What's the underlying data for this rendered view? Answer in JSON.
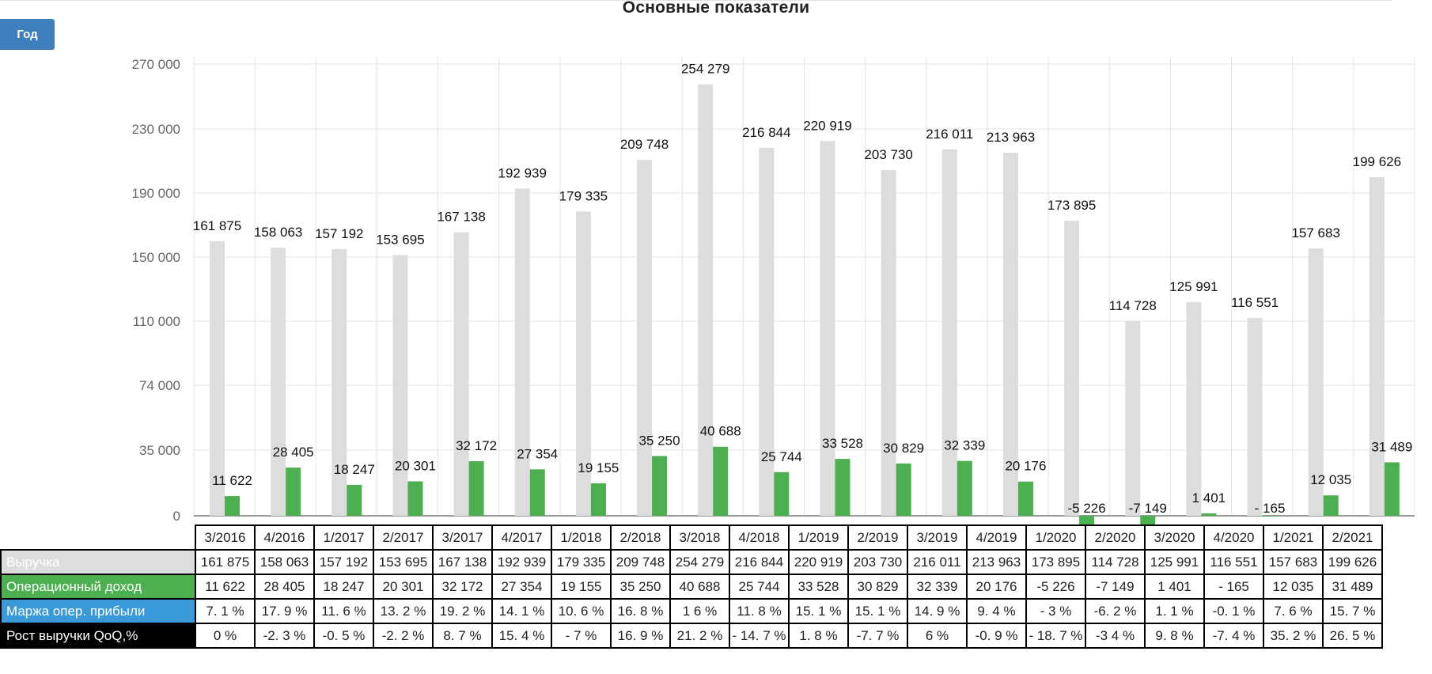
{
  "title": "Основные показатели",
  "period_button": "Год",
  "chart_data": {
    "type": "bar",
    "title": "Основные показатели",
    "categories": [
      "3/2016",
      "4/2016",
      "1/2017",
      "2/2017",
      "3/2017",
      "4/2017",
      "1/2018",
      "2/2018",
      "3/2018",
      "4/2018",
      "1/2019",
      "2/2019",
      "3/2019",
      "4/2019",
      "1/2020",
      "2/2020",
      "3/2020",
      "4/2020",
      "1/2021",
      "2/2021"
    ],
    "series": [
      {
        "name": "Выручка",
        "color": "#dddddd",
        "values": [
          161875,
          158063,
          157192,
          153695,
          167138,
          192939,
          179335,
          209748,
          254279,
          216844,
          220919,
          203730,
          216011,
          213963,
          173895,
          114728,
          125991,
          116551,
          157683,
          199626
        ],
        "labels": [
          "161 875",
          "158 063",
          "157 192",
          "153 695",
          "167 138",
          "192 939",
          "179 335",
          "209 748",
          "254 279",
          "216 844",
          "220 919",
          "203 730",
          "216 011",
          "213 963",
          "173 895",
          "114 728",
          "125 991",
          "116 551",
          "157 683",
          "199 626"
        ]
      },
      {
        "name": "Операционный доход",
        "color": "#4caf50",
        "values": [
          11622,
          28405,
          18247,
          20301,
          32172,
          27354,
          19155,
          35250,
          40688,
          25744,
          33528,
          30829,
          32339,
          20176,
          -5226,
          -7149,
          1401,
          -165,
          12035,
          31489
        ],
        "labels": [
          "11 622",
          "28 405",
          "18 247",
          "20 301",
          "32 172",
          "27 354",
          "19 155",
          "35 250",
          "40 688",
          "25 744",
          "33 528",
          "30 829",
          "32 339",
          "20 176",
          "-5 226",
          "-7 149",
          "1 401",
          "- 165",
          "12 035",
          "31 489"
        ]
      }
    ],
    "y_ticks": [
      "270 000",
      "230 000",
      "190 000",
      "150 000",
      "110 000",
      "74 000",
      "35 000",
      "0"
    ],
    "grid": true,
    "legend": "table below"
  },
  "table": {
    "periods": [
      "3/2016",
      "4/2016",
      "1/2017",
      "2/2017",
      "3/2017",
      "4/2017",
      "1/2018",
      "2/2018",
      "3/2018",
      "4/2018",
      "1/2019",
      "2/2019",
      "3/2019",
      "4/2019",
      "1/2020",
      "2/2020",
      "3/2020",
      "4/2020",
      "1/2021",
      "2/2021"
    ],
    "rows": [
      {
        "label": "Выручка",
        "color": "#dddddd",
        "cells": [
          "161 875",
          "158 063",
          "157 192",
          "153 695",
          "167 138",
          "192 939",
          "179 335",
          "209 748",
          "254 279",
          "216 844",
          "220 919",
          "203 730",
          "216 011",
          "213 963",
          "173 895",
          "114 728",
          "125 991",
          "116 551",
          "157 683",
          "199 626"
        ]
      },
      {
        "label": "Операционный доход",
        "color": "#4caf50",
        "cells": [
          "11 622",
          "28 405",
          "18 247",
          "20 301",
          "32 172",
          "27 354",
          "19 155",
          "35 250",
          "40 688",
          "25 744",
          "33 528",
          "30 829",
          "32 339",
          "20 176",
          "-5 226",
          "-7 149",
          "1 401",
          "- 165",
          "12 035",
          "31 489"
        ]
      },
      {
        "label": "Маржа опер. прибыли",
        "color": "#3a9ad9",
        "cells": [
          "7. 1 %",
          "17. 9 %",
          "11. 6 %",
          "13. 2 %",
          "19. 2 %",
          "14. 1 %",
          "10. 6 %",
          "16. 8 %",
          "1 6 %",
          "11. 8 %",
          "15. 1 %",
          "15. 1 %",
          "14. 9 %",
          "9. 4 %",
          "- 3 %",
          "-6. 2 %",
          "1. 1 %",
          "-0. 1 %",
          "7. 6 %",
          "15. 7 %"
        ]
      },
      {
        "label": "Рост выручки QoQ,%",
        "color": "#000000",
        "cells": [
          "0 %",
          "-2. 3 %",
          "-0. 5 %",
          "-2. 2 %",
          "8. 7 %",
          "15. 4 %",
          "- 7 %",
          "16. 9 %",
          "21. 2 %",
          "- 14. 7 %",
          "1. 8 %",
          "-7. 7 %",
          "6 %",
          "-0. 9 %",
          "- 18. 7 %",
          "-3 4 %",
          "9. 8 %",
          "-7. 4 %",
          "35. 2 %",
          "26. 5 %"
        ]
      }
    ]
  }
}
